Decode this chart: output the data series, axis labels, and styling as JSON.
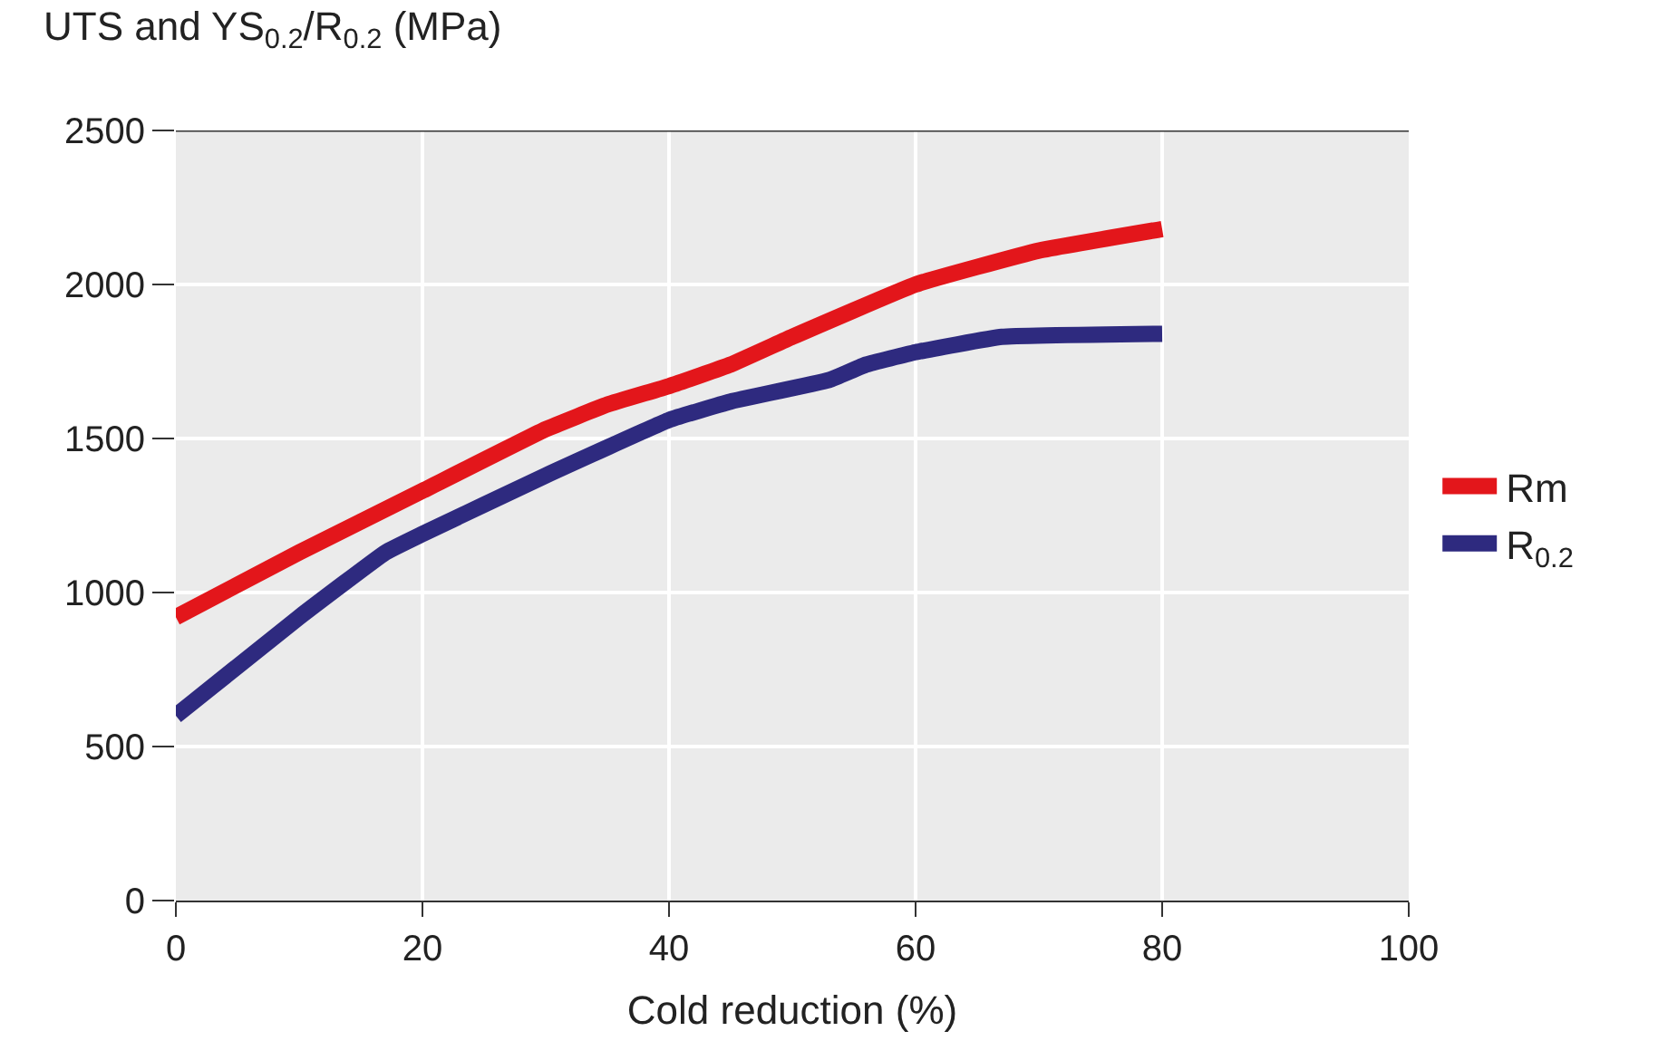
{
  "chart_data": {
    "type": "line",
    "ylabel": "UTS and YS$_{0.2}$/R$_{0.2}$ (MPa)",
    "xlabel": "Cold reduction (%)",
    "xlim": [
      0,
      100
    ],
    "xticks": [
      0,
      20,
      40,
      60,
      80,
      100
    ],
    "ylim": [
      0,
      2500
    ],
    "yticks": [
      0,
      500,
      1000,
      1500,
      2000,
      2500
    ],
    "grid": true,
    "legend": "right",
    "line_style": "solid",
    "marker": "none",
    "series": [
      {
        "name": "Rm",
        "color": "#e3161b",
        "x": [
          0,
          10,
          20,
          30,
          35,
          40,
          45,
          50,
          60,
          70,
          80
        ],
        "values": [
          920,
          1130,
          1330,
          1530,
          1610,
          1670,
          1740,
          1830,
          2000,
          2110,
          2180
        ]
      },
      {
        "name": "R$_{0.2}$",
        "color": "#2e2a7f",
        "x": [
          0,
          10,
          17,
          20,
          30,
          40,
          45,
          53,
          56,
          60,
          67,
          80
        ],
        "values": [
          600,
          920,
          1130,
          1190,
          1380,
          1560,
          1620,
          1690,
          1740,
          1780,
          1830,
          1840
        ]
      }
    ]
  }
}
